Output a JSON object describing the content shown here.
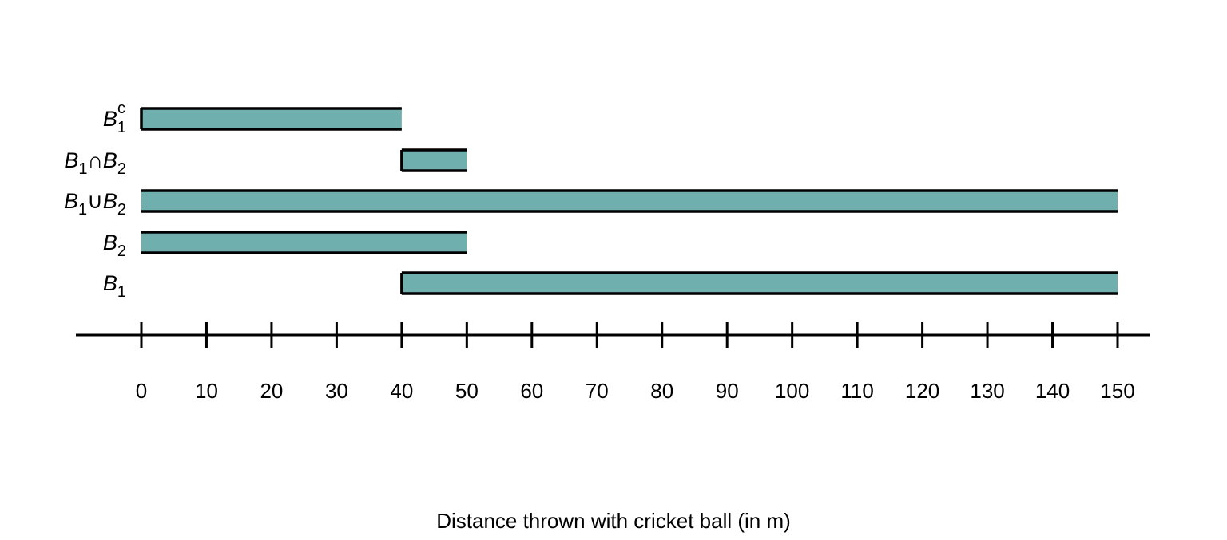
{
  "chart_data": {
    "type": "interval",
    "xlabel": "Distance thrown with cricket ball (in m)",
    "xlim": [
      -10,
      160
    ],
    "xticks": [
      0,
      10,
      20,
      30,
      40,
      50,
      60,
      70,
      80,
      90,
      100,
      110,
      120,
      130,
      140,
      150
    ],
    "fill_color": "#6fafae",
    "edge_color": "#000000",
    "grid": false,
    "intervals": [
      {
        "label": "B",
        "sub": "1",
        "sup": "c",
        "op": "",
        "label2": "",
        "sub2": "",
        "start": 0,
        "end": 40,
        "left_closed": true,
        "right_closed": false
      },
      {
        "label": "B",
        "sub": "1",
        "sup": "",
        "op": "∩",
        "label2": "B",
        "sub2": "2",
        "start": 40,
        "end": 50,
        "left_closed": true,
        "right_closed": false
      },
      {
        "label": "B",
        "sub": "1",
        "sup": "",
        "op": "∪",
        "label2": "B",
        "sub2": "2",
        "start": 0,
        "end": 150,
        "left_closed": false,
        "right_closed": false
      },
      {
        "label": "B",
        "sub": "2",
        "sup": "",
        "op": "",
        "label2": "",
        "sub2": "",
        "start": 0,
        "end": 50,
        "left_closed": false,
        "right_closed": false
      },
      {
        "label": "B",
        "sub": "1",
        "sup": "",
        "op": "",
        "label2": "",
        "sub2": "",
        "start": 40,
        "end": 150,
        "left_closed": true,
        "right_closed": false
      }
    ]
  }
}
